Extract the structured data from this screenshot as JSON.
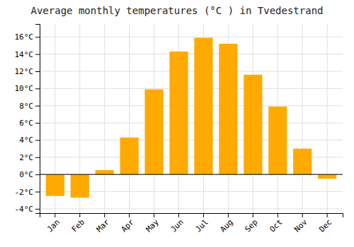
{
  "chart_data": {
    "type": "bar",
    "title": "Average monthly temperatures (°C ) in Tvedestrand",
    "categories": [
      "Jan",
      "Feb",
      "Mar",
      "Apr",
      "May",
      "Jun",
      "Jul",
      "Aug",
      "Sep",
      "Oct",
      "Nov",
      "Dec"
    ],
    "values": [
      -2.5,
      -2.7,
      0.5,
      4.3,
      9.9,
      14.3,
      15.9,
      15.2,
      11.6,
      7.9,
      3.0,
      -0.5
    ],
    "color": "#FFAA00",
    "ylim": [
      -4.5,
      17.5
    ],
    "yticks": [
      {
        "value": -4,
        "label": "-4°C"
      },
      {
        "value": -2,
        "label": "-2°C"
      },
      {
        "value": 0,
        "label": "0°C"
      },
      {
        "value": 2,
        "label": "2°C"
      },
      {
        "value": 4,
        "label": "4°C"
      },
      {
        "value": 6,
        "label": "6°C"
      },
      {
        "value": 8,
        "label": "8°C"
      },
      {
        "value": 10,
        "label": "10°C"
      },
      {
        "value": 12,
        "label": "12°C"
      },
      {
        "value": 14,
        "label": "14°C"
      },
      {
        "value": 16,
        "label": "16°C"
      }
    ],
    "grid": true
  }
}
